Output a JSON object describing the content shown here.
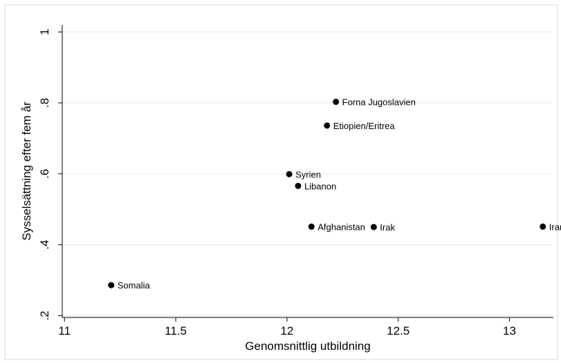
{
  "chart_data": {
    "type": "scatter",
    "xlabel": "Genomsnittlig utbildning",
    "ylabel": "Sysselsättning efter fem år",
    "xlim": [
      10.99,
      13.9
    ],
    "ylim": [
      0.195,
      1.02
    ],
    "x_ticks": [
      11,
      11.5,
      12,
      12.5,
      13
    ],
    "x_tick_labels": [
      "11",
      "11.5",
      "12",
      "12.5",
      "13"
    ],
    "y_ticks": [
      0.2,
      0.4,
      0.6,
      0.8,
      1
    ],
    "y_tick_labels": [
      ".2",
      ".4",
      ".6",
      ".8",
      "1"
    ],
    "grid": "horizontal",
    "points": [
      {
        "label": "Somalia",
        "x": 11.21,
        "y": 0.286
      },
      {
        "label": "Syrien",
        "x": 12.01,
        "y": 0.599
      },
      {
        "label": "Libanon",
        "x": 12.05,
        "y": 0.566
      },
      {
        "label": "Afghanistan",
        "x": 12.11,
        "y": 0.451
      },
      {
        "label": "Etiopien/Eritrea",
        "x": 12.18,
        "y": 0.736
      },
      {
        "label": "Forna Jugoslavien",
        "x": 12.22,
        "y": 0.803
      },
      {
        "label": "Irak",
        "x": 12.39,
        "y": 0.45
      },
      {
        "label": "Iran",
        "x": 13.15,
        "y": 0.451
      }
    ],
    "colors": {
      "background": "#ffffff",
      "grid": "#e8efef",
      "marker": "#000000"
    }
  }
}
